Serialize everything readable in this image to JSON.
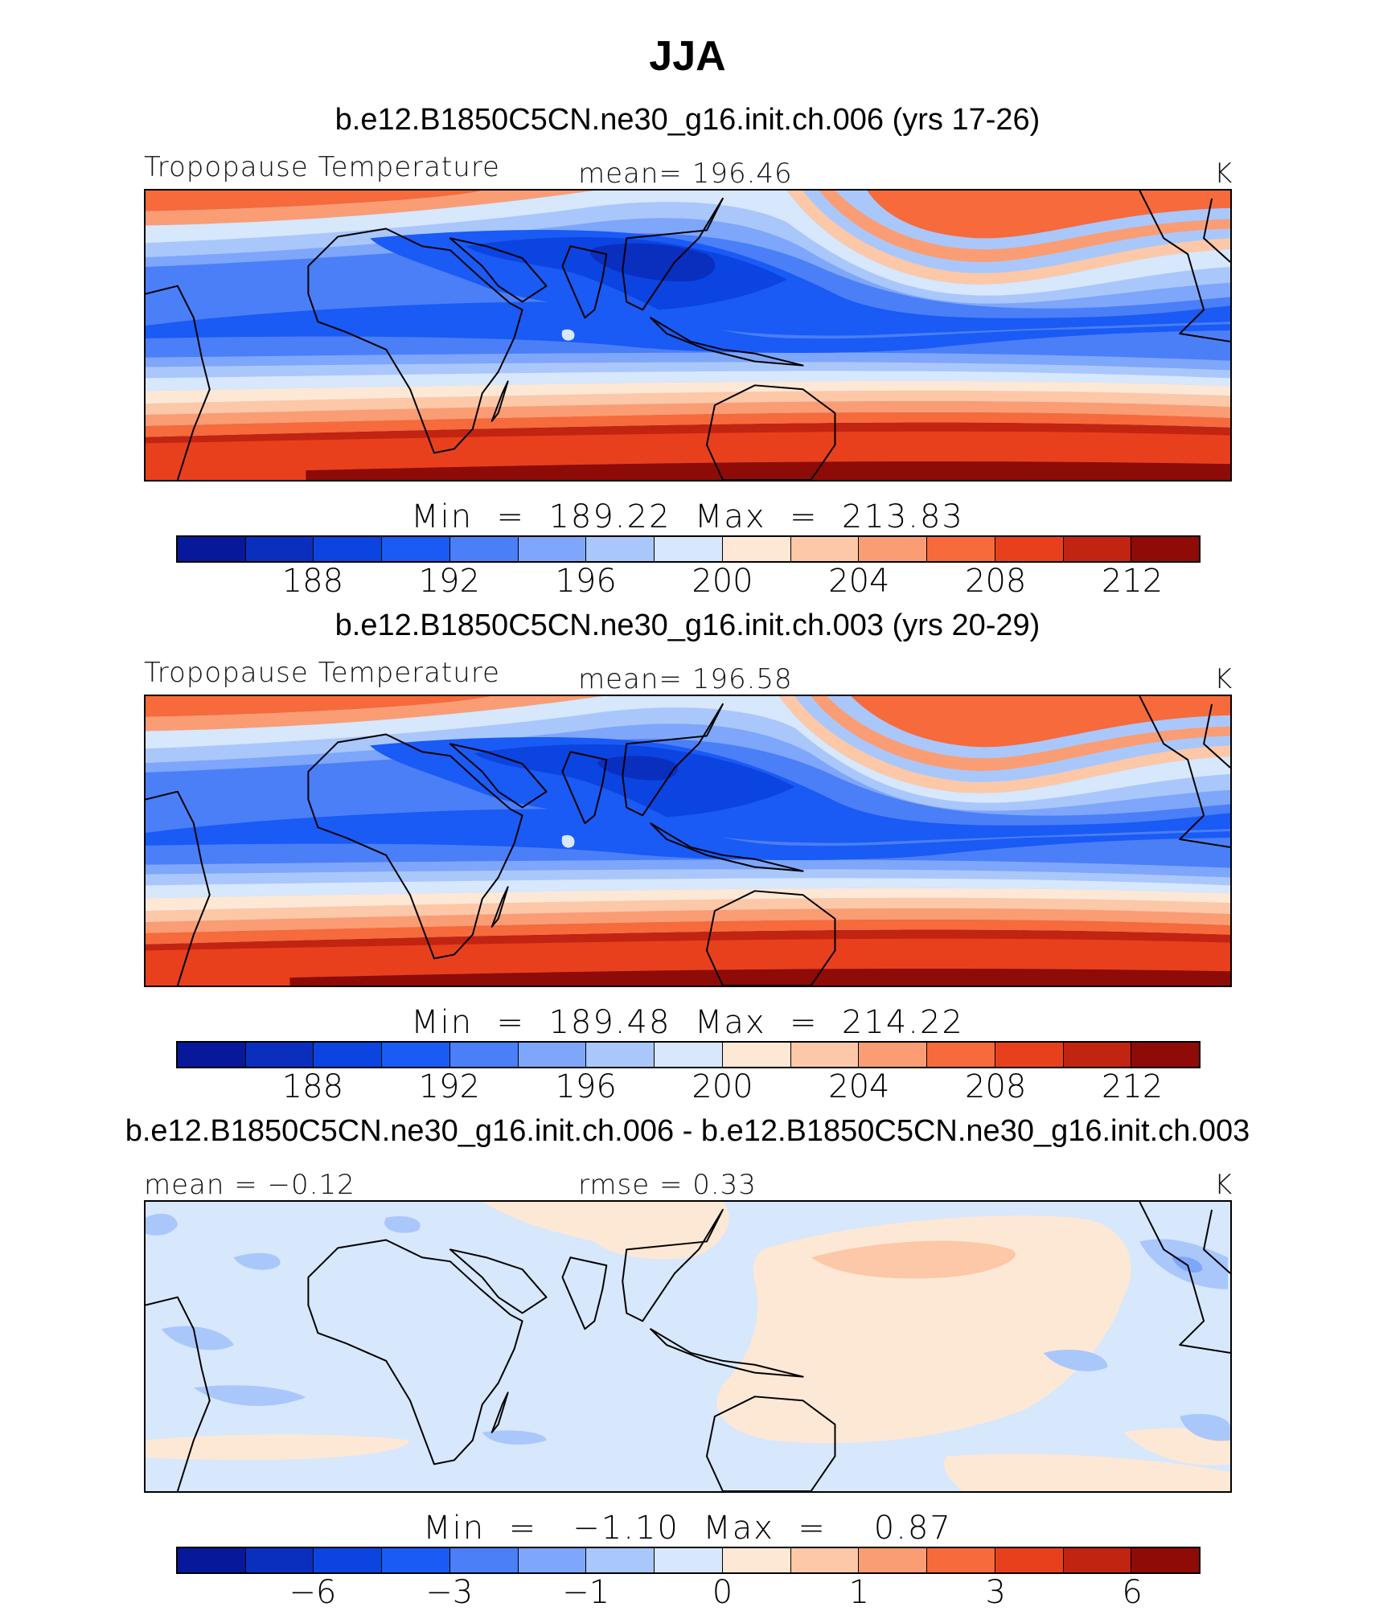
{
  "title": "JJA",
  "colors": [
    "#08189a",
    "#0a2fbf",
    "#0b44e0",
    "#1a5af5",
    "#4a7ff8",
    "#7ea6fa",
    "#aac7fb",
    "#d7e7fc",
    "#fde8d6",
    "#fcc8a8",
    "#fa9d74",
    "#f66a3c",
    "#e8401d",
    "#c22412",
    "#8e0b07"
  ],
  "panels": [
    {
      "title": "b.e12.B1850C5CN.ne30_g16.init.ch.006 (yrs 17-26)",
      "left_label": "Tropopause Temperature",
      "center_label": "mean= 196.46",
      "units": "K",
      "stats": "Min  =  189.22  Max  =  213.83",
      "ticks": [
        "188",
        "192",
        "196",
        "200",
        "204",
        "208",
        "212"
      ],
      "variant": "abs1"
    },
    {
      "title": "b.e12.B1850C5CN.ne30_g16.init.ch.003 (yrs 20-29)",
      "left_label": "Tropopause Temperature",
      "center_label": "mean= 196.58",
      "units": "K",
      "stats": "Min  =  189.48  Max  =  214.22",
      "ticks": [
        "188",
        "192",
        "196",
        "200",
        "204",
        "208",
        "212"
      ],
      "variant": "abs2"
    },
    {
      "title": "b.e12.B1850C5CN.ne30_g16.init.ch.006 - b.e12.B1850C5CN.ne30_g16.init.ch.003",
      "left_label": "mean =   −0.12",
      "center_label": "rmse =    0.33",
      "units": "K",
      "stats": "Min  =   −1.10  Max  =    0.87",
      "ticks": [
        "−6",
        "−3",
        "−1",
        "0",
        "1",
        "3",
        "6"
      ],
      "variant": "diff"
    }
  ]
}
